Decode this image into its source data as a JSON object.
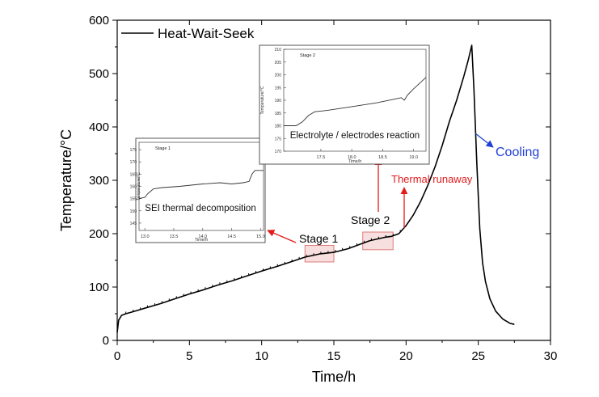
{
  "chart_data": {
    "type": "line",
    "xlabel": "Time/h",
    "ylabel": "Temperature/°C",
    "xlim": [
      0,
      30
    ],
    "ylim": [
      0,
      600
    ],
    "xticks": [
      0,
      5,
      10,
      15,
      20,
      25,
      30
    ],
    "yticks": [
      0,
      100,
      200,
      300,
      400,
      500,
      600
    ],
    "grid": false,
    "legend": {
      "position": "top-left",
      "entries": [
        "Heat-Wait-Seek"
      ]
    },
    "series": [
      {
        "name": "Heat-Wait-Seek",
        "color": "#000000",
        "x": [
          0,
          0.1,
          0.3,
          0.6,
          1.0,
          2.0,
          3.0,
          4.0,
          5.0,
          6.0,
          7.0,
          8.0,
          9.0,
          10.0,
          11.0,
          12.0,
          13.0,
          14.0,
          15.0,
          16.0,
          17.0,
          17.5,
          18.0,
          18.5,
          19.0,
          19.5,
          20.0,
          20.5,
          21.0,
          21.5,
          22.0,
          22.5,
          23.0,
          23.5,
          24.0,
          24.3,
          24.55,
          24.7,
          24.9,
          25.1,
          25.3,
          25.5,
          25.8,
          26.2,
          26.7,
          27.2,
          27.5
        ],
        "y": [
          15,
          38,
          47,
          50,
          53,
          61,
          69,
          78,
          87,
          95,
          104,
          112,
          121,
          130,
          138,
          147,
          156,
          162,
          165,
          172,
          182,
          187,
          190,
          193,
          195,
          200,
          215,
          235,
          260,
          290,
          325,
          365,
          410,
          450,
          495,
          525,
          553,
          470,
          330,
          210,
          145,
          110,
          78,
          55,
          40,
          32,
          30
        ]
      }
    ],
    "highlight_boxes": [
      {
        "label": "Stage 1",
        "x_range": [
          13.0,
          15.0
        ],
        "y_range": [
          147,
          178
        ]
      },
      {
        "label": "Stage 2",
        "x_range": [
          17.0,
          19.1
        ],
        "y_range": [
          170,
          203
        ]
      }
    ],
    "annotations": [
      {
        "text": "Stage 1",
        "color": "#000000"
      },
      {
        "text": "Stage 2",
        "color": "#000000"
      },
      {
        "text": "Thermal runaway",
        "color": "#e31a1c"
      },
      {
        "text": "Cooling",
        "color": "#1f3fd6"
      }
    ],
    "insets": [
      {
        "stage_label": "Stage 1",
        "caption": "SEI thermal decomposition",
        "xlabel": "Time/h",
        "ylabel": "Temperature/°C",
        "xlim": [
          12.9,
          15.05
        ],
        "ylim": [
          142,
          178
        ],
        "xticks": [
          "13.0",
          "13.5",
          "14.0",
          "14.5",
          "15.0"
        ],
        "yticks": [
          "145",
          "150",
          "155",
          "160",
          "165",
          "170",
          "175"
        ],
        "x": [
          12.9,
          13.0,
          13.05,
          13.15,
          13.3,
          13.6,
          14.0,
          14.3,
          14.5,
          14.7,
          14.8,
          14.85,
          14.9,
          15.05
        ],
        "y": [
          155,
          155.5,
          157,
          159,
          159.5,
          160,
          161,
          161.5,
          161,
          161.5,
          162,
          165,
          166.5,
          166.5
        ]
      },
      {
        "stage_label": "Stage 2",
        "caption": "Electrolyte / electrodes reaction",
        "xlabel": "Time/h",
        "ylabel": "Temperature/°C",
        "xlim": [
          16.9,
          19.2
        ],
        "ylim": [
          170,
          210
        ],
        "xticks": [
          "17.5",
          "18.0",
          "18.5",
          "19.0"
        ],
        "yticks": [
          "170",
          "175",
          "180",
          "185",
          "190",
          "195",
          "200",
          "205",
          "210"
        ],
        "x": [
          16.9,
          17.1,
          17.2,
          17.3,
          17.4,
          17.6,
          18.0,
          18.4,
          18.7,
          18.8,
          18.85,
          18.9,
          19.0,
          19.2
        ],
        "y": [
          180,
          180,
          181.5,
          184,
          185.5,
          186,
          187.5,
          189,
          190.5,
          191,
          190,
          192,
          194.5,
          199
        ]
      }
    ]
  }
}
